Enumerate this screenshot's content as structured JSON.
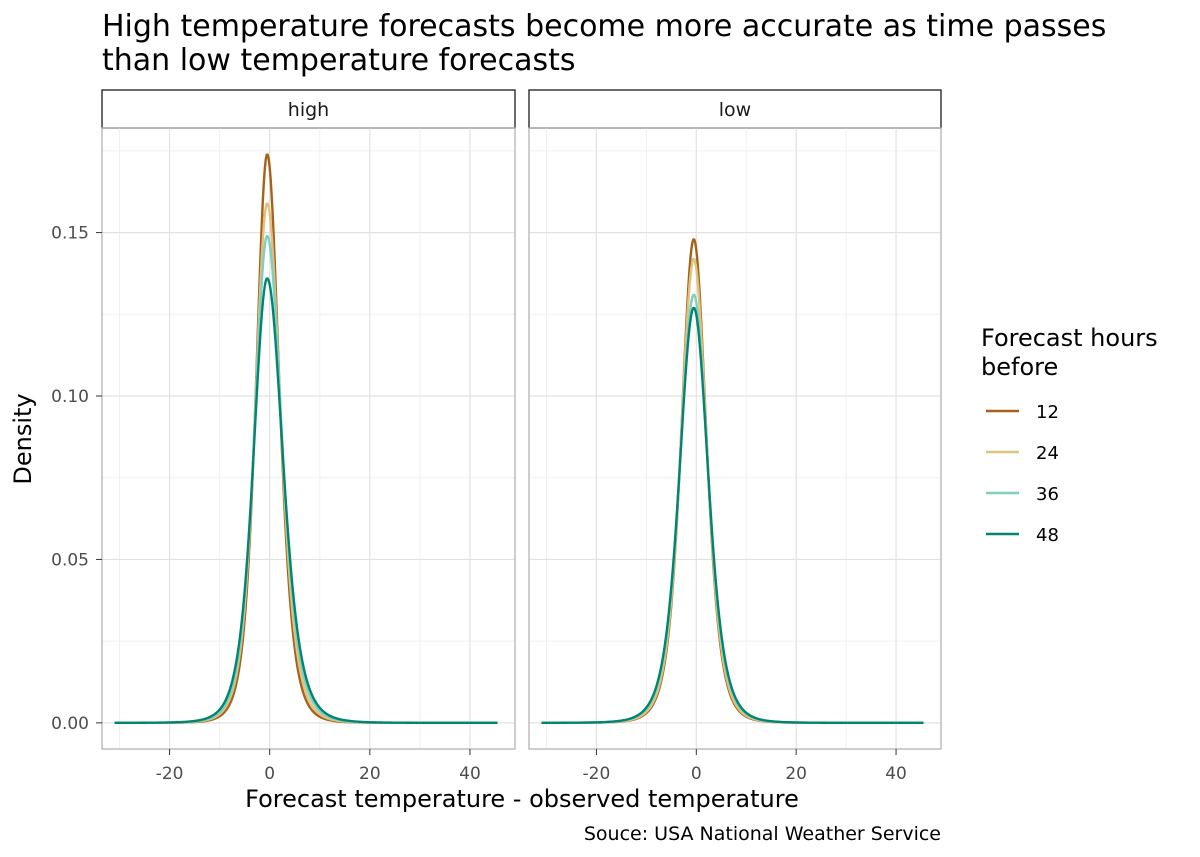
{
  "chart_data": {
    "type": "line",
    "title_lines": [
      "High temperature forecasts become more accurate as time passes",
      "than low temperature forecasts"
    ],
    "xlabel": "Forecast temperature - observed temperature",
    "ylabel": "Density",
    "caption": "Souce: USA National Weather Service",
    "xlim": [
      -33.5,
      49
    ],
    "ylim": [
      -0.008,
      0.182
    ],
    "x_ticks": [
      -20,
      0,
      20,
      40
    ],
    "x_tick_labels": [
      "-20",
      "0",
      "20",
      "40"
    ],
    "x_minor_ticks": [
      -30,
      -10,
      10,
      30
    ],
    "y_ticks": [
      0,
      0.05,
      0.1,
      0.15
    ],
    "y_tick_labels": [
      "0.00",
      "0.05",
      "0.10",
      "0.15"
    ],
    "y_minor_ticks": [
      0.025,
      0.075,
      0.125,
      0.175
    ],
    "grid": true,
    "legend": {
      "title_lines": [
        "Forecast hours",
        "before"
      ],
      "position": "right"
    },
    "x_range": [
      -31,
      45.5
    ],
    "panels": [
      {
        "label": "high",
        "series": [
          {
            "name": "12",
            "color": "#a6611a",
            "peak_x": -0.5,
            "peak": 0.174,
            "left_sd": 2.3,
            "right_sd": 2.5
          },
          {
            "name": "24",
            "color": "#dfc27d",
            "peak_x": -0.5,
            "peak": 0.159,
            "left_sd": 2.5,
            "right_sd": 2.75
          },
          {
            "name": "36",
            "color": "#80cdc1",
            "peak_x": -0.5,
            "peak": 0.149,
            "left_sd": 2.65,
            "right_sd": 3.0
          },
          {
            "name": "48",
            "color": "#018571",
            "peak_x": -0.5,
            "peak": 0.136,
            "left_sd": 2.85,
            "right_sd": 3.25
          }
        ]
      },
      {
        "label": "low",
        "series": [
          {
            "name": "12",
            "color": "#a6611a",
            "peak_x": -0.5,
            "peak": 0.148,
            "left_sd": 2.6,
            "right_sd": 2.6
          },
          {
            "name": "24",
            "color": "#dfc27d",
            "peak_x": -0.5,
            "peak": 0.142,
            "left_sd": 2.7,
            "right_sd": 2.7
          },
          {
            "name": "36",
            "color": "#80cdc1",
            "peak_x": -0.5,
            "peak": 0.131,
            "left_sd": 2.9,
            "right_sd": 2.9
          },
          {
            "name": "48",
            "color": "#018571",
            "peak_x": -0.5,
            "peak": 0.127,
            "left_sd": 3.0,
            "right_sd": 3.0
          }
        ]
      }
    ]
  }
}
